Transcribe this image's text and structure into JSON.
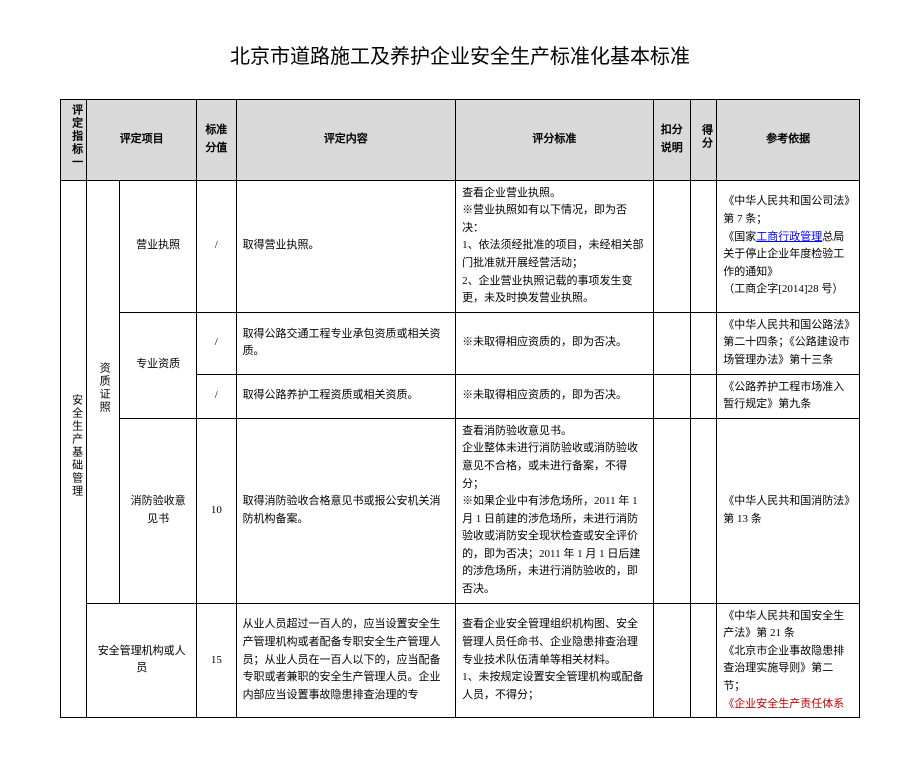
{
  "title": "北京市道路施工及养护企业安全生产标准化基本标准",
  "header": {
    "col1": "评定指标一",
    "col2": "评定项目",
    "col3": "标准分值",
    "col4": "评定内容",
    "col5": "评分标准",
    "col6": "扣分说明",
    "col7": "得分",
    "col8": "参考依据"
  },
  "group1": "安全生产基础管理",
  "group2": "资质证照",
  "rows": {
    "r1": {
      "item": "营业执照",
      "score": "/",
      "content": "取得营业执照。",
      "std": "查看企业营业执照。\n※营业执照如有以下情况，即为否决：\n1、依法须经批准的项目，未经相关部门批准就开展经营活动；\n2、企业营业执照记载的事项发生变更，未及时换发营业执照。",
      "ref_a": "《中华人民共和国公司法》第 7 条；",
      "ref_b_pre": "《国家",
      "ref_b_link": "工商行政管理",
      "ref_b_post": "总局关于停止企业年度检验工作的通知》",
      "ref_c": "（工商企字[2014]28 号）"
    },
    "r2": {
      "item": "专业资质",
      "score": "/",
      "content": "取得公路交通工程专业承包资质或相关资质。",
      "std": "※未取得相应资质的，即为否决。",
      "ref": "《中华人民共和国公路法》第二十四条；《公路建设市场管理办法》第十三条"
    },
    "r3": {
      "score": "/",
      "content": "取得公路养护工程资质或相关资质。",
      "std": "※未取得相应资质的，即为否决。",
      "ref": "《公路养护工程市场准入暂行规定》第九条"
    },
    "r4": {
      "item": "消防验收意见书",
      "score": "10",
      "content": "取得消防验收合格意见书或报公安机关消防机构备案。",
      "std": "查看消防验收意见书。\n企业整体未进行消防验收或消防验收意见不合格，或未进行备案，不得分；\n※如果企业中有涉危场所，2011 年 1 月 1 日前建的涉危场所，未进行消防验收或消防安全现状检查或安全评价的，即为否决；2011 年 1 月 1 日后建的涉危场所，未进行消防验收的，即否决。",
      "ref": "《中华人民共和国消防法》第 13 条"
    },
    "r5": {
      "item": "安全管理机构或人员",
      "score": "15",
      "content": "从业人员超过一百人的，应当设置安全生产管理机构或者配备专职安全生产管理人员；从业人员在一百人以下的，应当配备专职或者兼职的安全生产管理人员。企业内部应当设置事故隐患排查治理的专",
      "std": "查看企业安全管理组织机构图、安全管理人员任命书、企业隐患排查治理专业技术队伍清单等相关材料。\n1、未按规定设置安全管理机构或配备人员，不得分；",
      "ref_a": "《中华人民共和国安全生产法》第 21 条",
      "ref_b": "《北京市企业事故隐患排查治理实施导则》第二节；",
      "ref_c": "《企业安全生产责任体系"
    }
  }
}
